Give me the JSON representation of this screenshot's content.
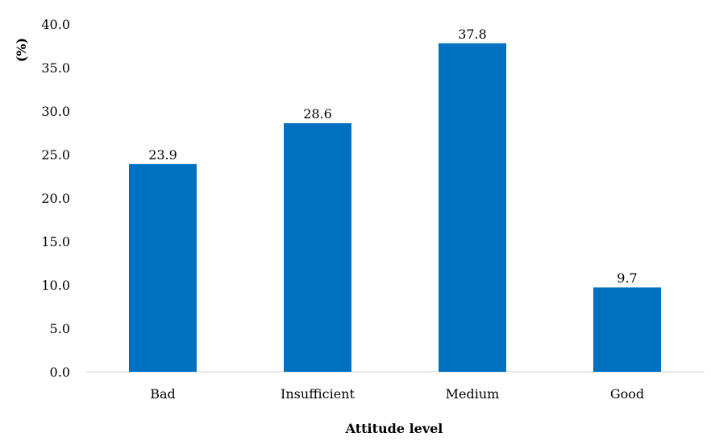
{
  "chart_data": {
    "type": "bar",
    "categories": [
      "Bad",
      "Insufficient",
      "Medium",
      "Good"
    ],
    "values": [
      23.9,
      28.6,
      37.8,
      9.7
    ],
    "data_labels": [
      "23.9",
      "28.6",
      "37.8",
      "9.7"
    ],
    "title": "",
    "xlabel": "Attitude level",
    "ylabel": "(%)",
    "ylim": [
      0,
      40
    ],
    "y_ticks": [
      "0.0",
      "5.0",
      "10.0",
      "15.0",
      "20.0",
      "25.0",
      "30.0",
      "35.0",
      "40.0"
    ],
    "grid": false,
    "legend": "none",
    "bar_color": "#0070C0",
    "axis_color": "#D9D9D9"
  }
}
